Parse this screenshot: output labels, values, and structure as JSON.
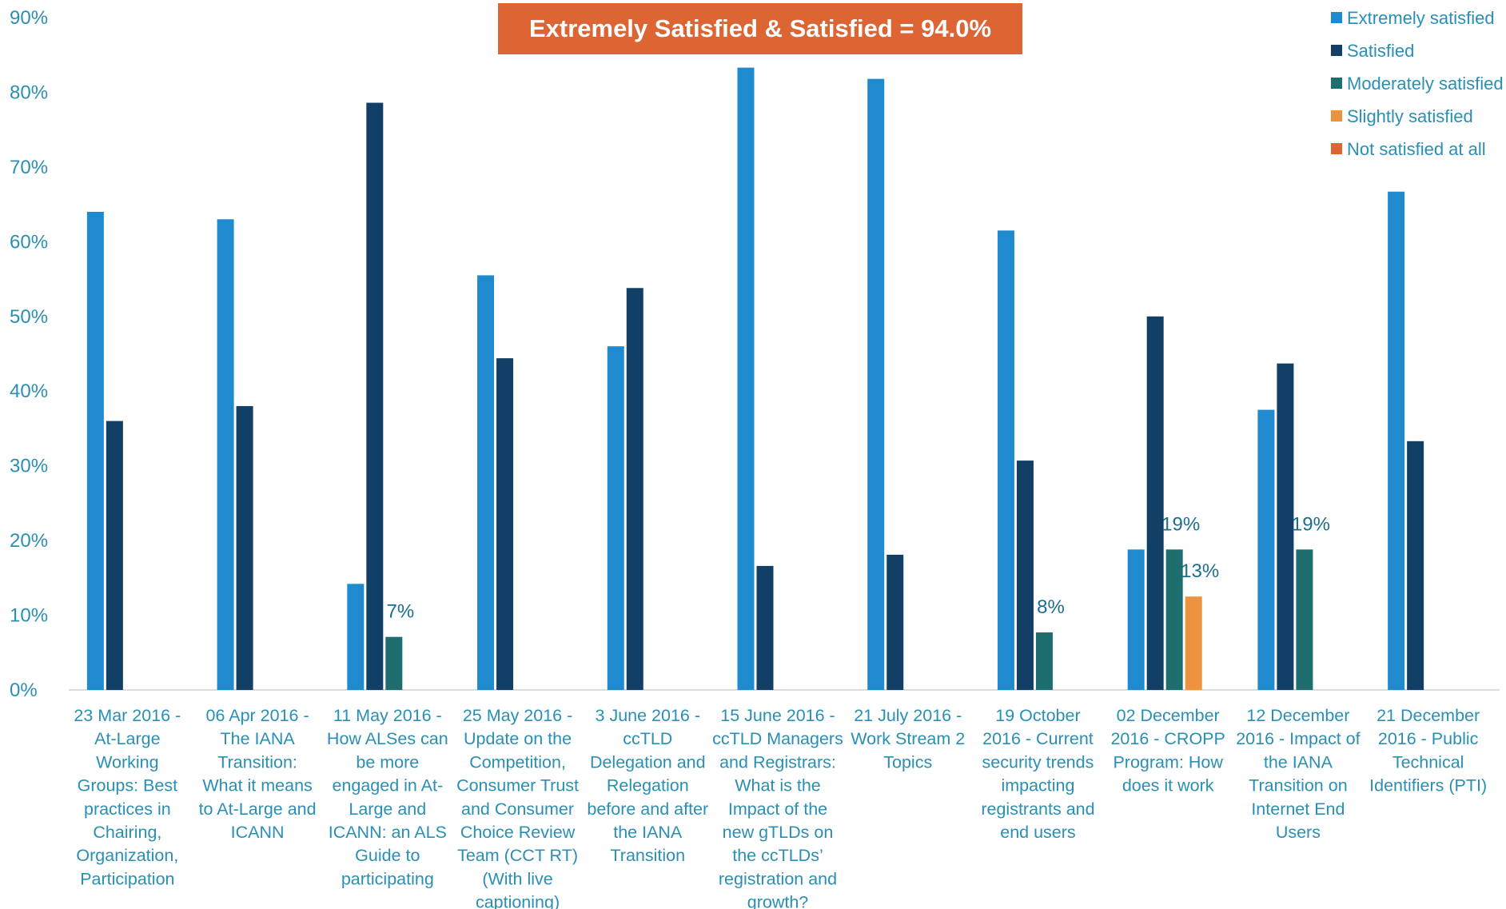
{
  "banner": "Extremely Satisfied & Satisfied = 94.0%",
  "chart_data": {
    "type": "bar",
    "title": "",
    "xlabel": "",
    "ylabel": "",
    "ylim": [
      0,
      90
    ],
    "yticks": [
      "0%",
      "10%",
      "20%",
      "30%",
      "40%",
      "50%",
      "60%",
      "70%",
      "80%",
      "90%"
    ],
    "grid": false,
    "legend_position": "top-right",
    "categories": [
      [
        "23 Mar 2016 -",
        "At-Large",
        "Working",
        "Groups: Best",
        "practices in",
        "Chairing,",
        "Organization,",
        "Participation"
      ],
      [
        "06 Apr 2016 -",
        "The IANA",
        "Transition:",
        "What it means",
        "to At-Large and",
        "ICANN"
      ],
      [
        "11 May 2016 -",
        "How ALSes can",
        "be more",
        "engaged in At-",
        "Large and",
        "ICANN: an ALS",
        "Guide to",
        "participating"
      ],
      [
        "25 May 2016 -",
        "Update on the",
        "Competition,",
        "Consumer Trust",
        "and Consumer",
        "Choice Review",
        "Team (CCT RT)",
        "(With live",
        "captioning)"
      ],
      [
        "3 June 2016 -",
        "ccTLD",
        "Delegation and",
        "Relegation",
        "before and after",
        "the IANA",
        "Transition"
      ],
      [
        "15 June 2016 -",
        "ccTLD Managers",
        "and Registrars:",
        "What is the",
        "Impact of the",
        "new gTLDs on",
        "the ccTLDs’",
        "registration and",
        "growth?"
      ],
      [
        "21 July 2016 -",
        "Work Stream 2",
        "Topics"
      ],
      [
        "19 October",
        "2016 - Current",
        "security trends",
        "impacting",
        "registrants and",
        "end users"
      ],
      [
        "02 December",
        "2016 - CROPP",
        "Program: How",
        "does it work"
      ],
      [
        "12 December",
        "2016 - Impact of",
        "the IANA",
        "Transition on",
        "Internet End",
        "Users"
      ],
      [
        "21 December",
        "2016 - Public",
        "Technical",
        "Identifiers (PTI)"
      ]
    ],
    "series": [
      {
        "name": "Extremely satisfied",
        "color": "#1f8ace",
        "values": [
          64.0,
          63.0,
          14.2,
          55.5,
          46.0,
          83.3,
          81.8,
          61.5,
          18.8,
          37.5,
          66.7
        ]
      },
      {
        "name": "Satisfied",
        "color": "#123f66",
        "values": [
          36.0,
          38.0,
          78.6,
          44.4,
          53.8,
          16.6,
          18.1,
          30.7,
          50.0,
          43.7,
          33.3
        ]
      },
      {
        "name": "Moderately satisfied",
        "color": "#1e6e70",
        "values": [
          0,
          0,
          7.1,
          0,
          0,
          0,
          0,
          7.7,
          18.8,
          18.8,
          0
        ]
      },
      {
        "name": "Slightly satisfied",
        "color": "#ed923f",
        "values": [
          0,
          0,
          0,
          0,
          0,
          0,
          0,
          0,
          12.5,
          0,
          0
        ]
      },
      {
        "name": "Not satisfied at all",
        "color": "#dd6433",
        "values": [
          0,
          0,
          0,
          0,
          0,
          0,
          0,
          0,
          0,
          0,
          0
        ]
      }
    ],
    "data_labels": [
      {
        "category_index": 2,
        "series_index": 2,
        "text": "7%"
      },
      {
        "category_index": 7,
        "series_index": 2,
        "text": "8%"
      },
      {
        "category_index": 8,
        "series_index": 2,
        "text": "19%"
      },
      {
        "category_index": 8,
        "series_index": 3,
        "text": "13%"
      },
      {
        "category_index": 9,
        "series_index": 2,
        "text": "19%"
      }
    ]
  }
}
